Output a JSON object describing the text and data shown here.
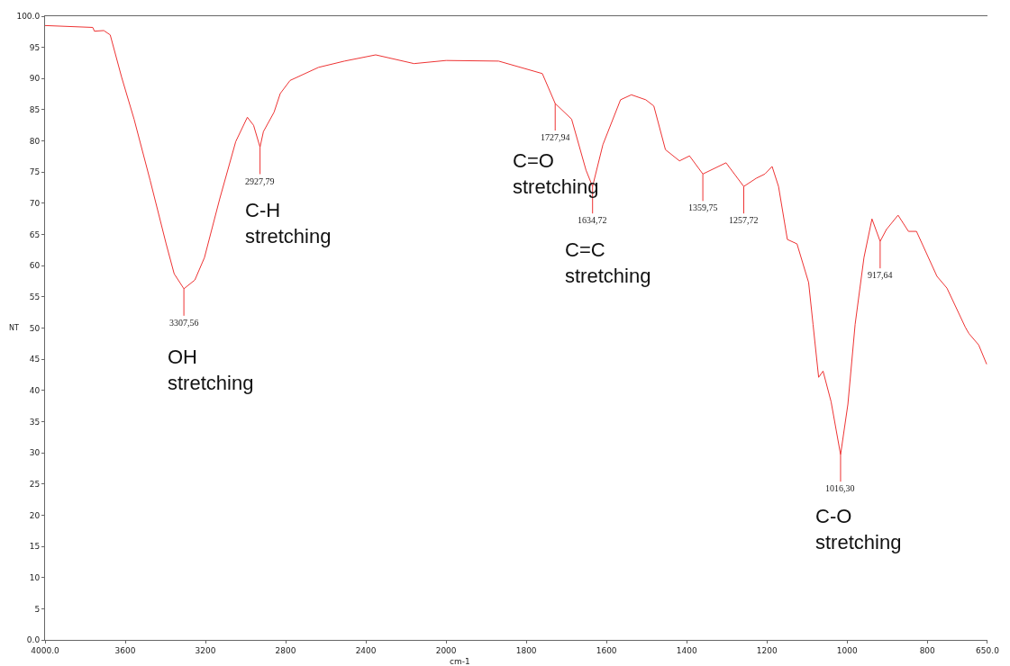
{
  "chart_data": [
    {
      "type": "line",
      "ylabel": "NT",
      "x": [
        4000,
        3762,
        3754,
        3707,
        3675,
        3618,
        3556,
        3476,
        3396,
        3356,
        3307.56,
        3253,
        3205,
        3129,
        3049,
        2991,
        2960,
        2927.79,
        2911,
        2858,
        2827,
        2778,
        2636,
        2507,
        2351,
        2160,
        2000
      ],
      "series": [
        {
          "color": "#ee3333",
          "values": [
            98.5,
            98.2,
            97.6,
            97.7,
            97.0,
            90.2,
            83.5,
            73.7,
            63.5,
            58.7,
            56.3,
            57.7,
            61.3,
            70.7,
            79.9,
            83.8,
            82.5,
            79,
            81.5,
            84.6,
            87.6,
            89.7,
            91.8,
            92.8,
            93.8,
            92.4,
            92.9
          ]
        }
      ],
      "xlim": [
        4000,
        2000
      ],
      "xticks": [
        {
          "value": 4000,
          "label": "4000.0"
        },
        3600,
        3200,
        2800,
        2400,
        2000
      ],
      "ylim": [
        0,
        100
      ],
      "yticks": [
        {
          "value": 0,
          "label": "0.0"
        },
        5,
        10,
        15,
        20,
        25,
        30,
        35,
        40,
        45,
        50,
        55,
        60,
        65,
        70,
        75,
        80,
        85,
        90,
        95,
        {
          "value": 100,
          "label": "100.0"
        }
      ],
      "marker": "none",
      "line_style": "solid",
      "annotations": [
        {
          "text": "3307,56",
          "x": 3307.56,
          "y": 56.3
        },
        {
          "text": "2927,79",
          "x": 2927.79,
          "y": 79
        },
        "OH\nstretching",
        "C-H\nstretching"
      ]
    },
    {
      "type": "line",
      "xlabel": "cm-1",
      "x": [
        2000,
        1869,
        1760,
        1727.94,
        1687,
        1651,
        1634.72,
        1609,
        1565,
        1538,
        1502,
        1482,
        1453,
        1418,
        1393,
        1359.75,
        1302,
        1257.72,
        1227,
        1205,
        1187,
        1171,
        1149,
        1125,
        1096,
        1085,
        1071,
        1060,
        1040,
        1016.3,
        998,
        980,
        958,
        938,
        917.64,
        902,
        873,
        847,
        827,
        776,
        751,
        705,
        696,
        672,
        652
      ],
      "series": [
        {
          "color": "#ee3333",
          "values": [
            92.9,
            92.8,
            90.8,
            86,
            83.5,
            75.3,
            72.7,
            79.4,
            86.6,
            87.4,
            86.6,
            85.6,
            78.6,
            76.8,
            77.6,
            74.7,
            76.5,
            72.7,
            74.0,
            74.7,
            75.9,
            72.7,
            64.2,
            63.5,
            57.3,
            50.6,
            42.1,
            43.1,
            38.2,
            29.7,
            37.8,
            50.6,
            61.3,
            67.5,
            63.9,
            65.8,
            68.1,
            65.5,
            65.5,
            58.3,
            56.4,
            50.1,
            49.1,
            47.3,
            44.2
          ]
        }
      ],
      "xlim": [
        2000,
        650
      ],
      "xticks": [
        1800,
        1600,
        1400,
        1200,
        1000,
        800,
        {
          "value": 650,
          "label": "650.0"
        }
      ],
      "ylim": [
        0,
        100
      ],
      "tick_labels": "x",
      "marker": "none",
      "line_style": "solid",
      "annotations": [
        {
          "text": "1727,94",
          "x": 1727.94,
          "y": 86
        },
        {
          "text": "1634,72",
          "x": 1634.72,
          "y": 72.7
        },
        {
          "text": "1359,75",
          "x": 1359.75,
          "y": 74.7
        },
        {
          "text": "1257,72",
          "x": 1257.72,
          "y": 72.7
        },
        {
          "text": "1016,30",
          "x": 1016.3,
          "y": 29.7
        },
        {
          "text": "917,64",
          "x": 917.64,
          "y": 63.9
        },
        "C=O\nstretching",
        "C=C\nstretching",
        "C-O\nstretching"
      ]
    }
  ]
}
